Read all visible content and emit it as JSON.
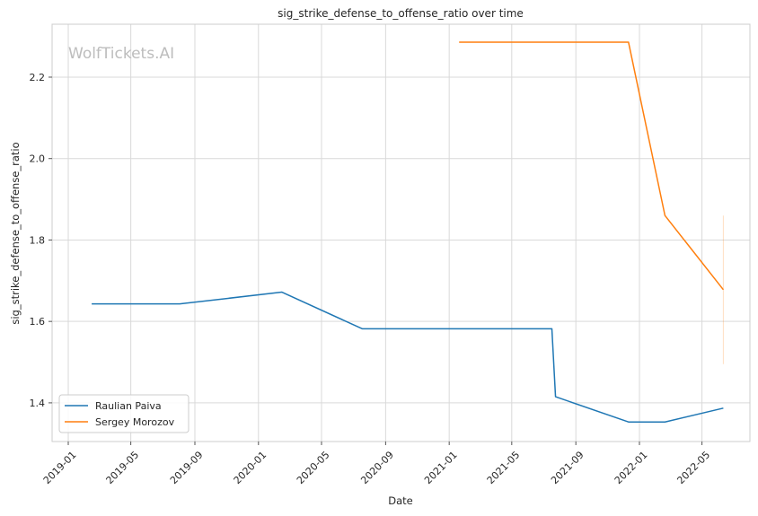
{
  "chart_data": {
    "type": "line",
    "title": "sig_strike_defense_to_offense_ratio over time",
    "xlabel": "Date",
    "ylabel": "sig_strike_defense_to_offense_ratio",
    "watermark": "WolfTickets.AI",
    "x_ticks": [
      "2019-01",
      "2019-05",
      "2019-09",
      "2020-01",
      "2020-05",
      "2020-09",
      "2021-01",
      "2021-05",
      "2021-09",
      "2022-01",
      "2022-05"
    ],
    "y_ticks": [
      "1.4",
      "1.6",
      "1.8",
      "2.0",
      "2.2"
    ],
    "xlim": [
      "2018-12-01",
      "2022-08-01"
    ],
    "ylim": [
      1.305,
      2.33
    ],
    "grid": true,
    "legend_position": "lower-left",
    "series": [
      {
        "name": "Raulian Paiva",
        "color": "#1f77b4",
        "points": [
          {
            "x": "2019-02-15",
            "y": 1.643
          },
          {
            "x": "2019-08-03",
            "y": 1.643
          },
          {
            "x": "2020-02-15",
            "y": 1.672
          },
          {
            "x": "2020-07-18",
            "y": 1.582
          },
          {
            "x": "2021-07-17",
            "y": 1.582
          },
          {
            "x": "2021-07-24",
            "y": 1.415
          },
          {
            "x": "2021-12-11",
            "y": 1.353
          },
          {
            "x": "2022-02-19",
            "y": 1.353
          },
          {
            "x": "2022-06-11",
            "y": 1.387
          }
        ]
      },
      {
        "name": "Sergey Morozov",
        "color": "#ff7f0e",
        "points": [
          {
            "x": "2021-01-20",
            "y": 2.286
          },
          {
            "x": "2021-12-11",
            "y": 2.286
          },
          {
            "x": "2022-02-19",
            "y": 1.86
          },
          {
            "x": "2022-06-11",
            "y": 1.678
          }
        ]
      }
    ],
    "annotations": [
      {
        "type": "vertical-range",
        "x": "2022-06-11",
        "y_from": 1.495,
        "y_to": 1.86,
        "color": "#ff7f0e"
      }
    ]
  }
}
